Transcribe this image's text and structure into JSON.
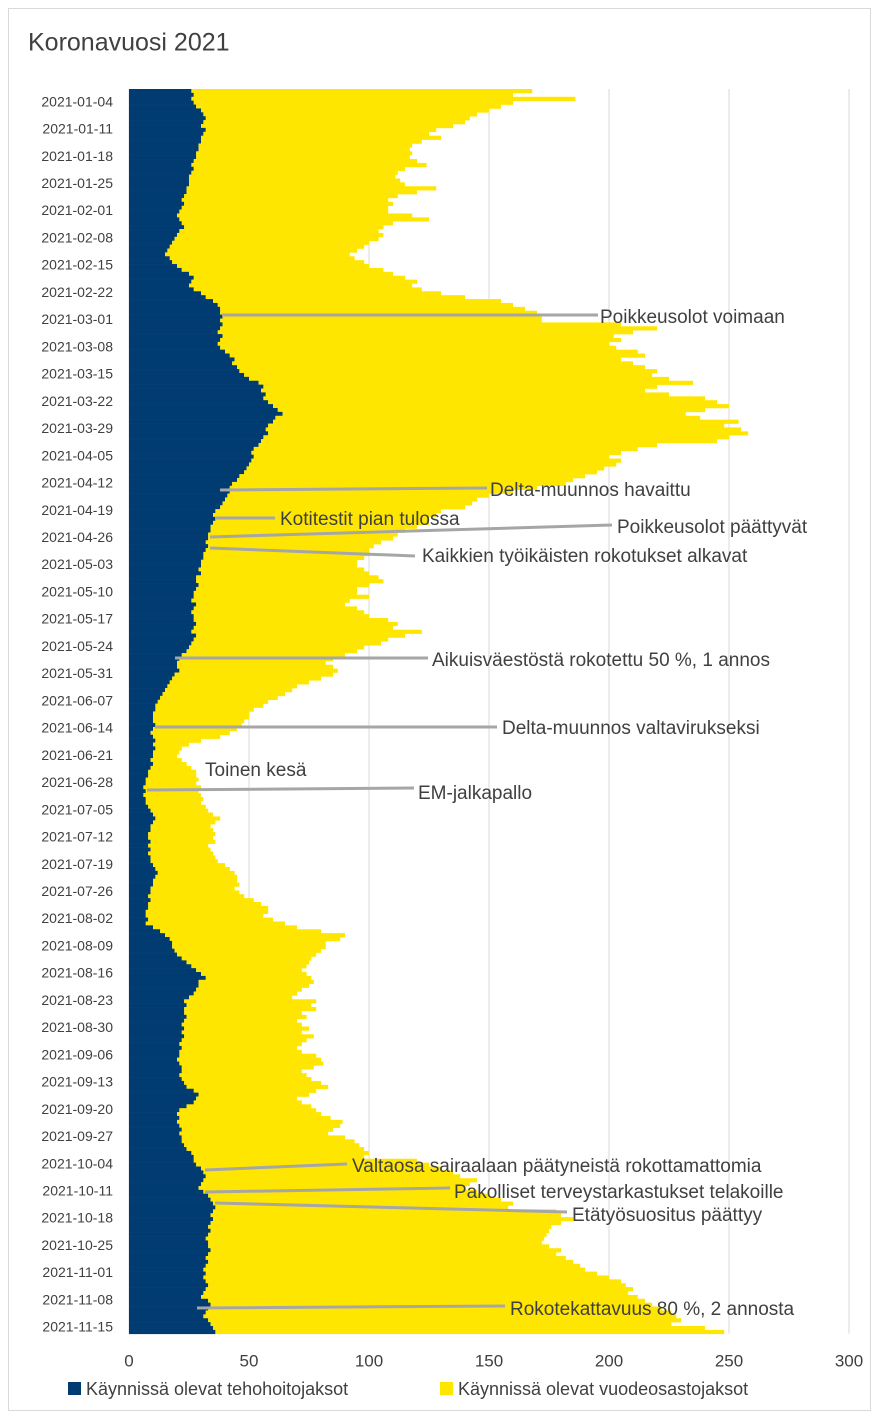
{
  "chart_data": {
    "type": "stacked-barh",
    "title": "Koronavuosi 2021",
    "categories": [
      null,
      null,
      null,
      "2021-01-04",
      null,
      null,
      null,
      null,
      null,
      null,
      "2021-01-11",
      null,
      null,
      null,
      null,
      null,
      null,
      "2021-01-18",
      null,
      null,
      null,
      null,
      null,
      null,
      "2021-01-25",
      null,
      null,
      null,
      null,
      null,
      null,
      "2021-02-01",
      null,
      null,
      null,
      null,
      null,
      null,
      "2021-02-08",
      null,
      null,
      null,
      null,
      null,
      null,
      "2021-02-15",
      null,
      null,
      null,
      null,
      null,
      null,
      "2021-02-22",
      null,
      null,
      null,
      null,
      null,
      null,
      "2021-03-01",
      null,
      null,
      null,
      null,
      null,
      null,
      "2021-03-08",
      null,
      null,
      null,
      null,
      null,
      null,
      "2021-03-15",
      null,
      null,
      null,
      null,
      null,
      null,
      "2021-03-22",
      null,
      null,
      null,
      null,
      null,
      null,
      "2021-03-29",
      null,
      null,
      null,
      null,
      null,
      null,
      "2021-04-05",
      null,
      null,
      null,
      null,
      null,
      null,
      "2021-04-12",
      null,
      null,
      null,
      null,
      null,
      null,
      "2021-04-19",
      null,
      null,
      null,
      null,
      null,
      null,
      "2021-04-26",
      null,
      null,
      null,
      null,
      null,
      null,
      "2021-05-03",
      null,
      null,
      null,
      null,
      null,
      null,
      "2021-05-10",
      null,
      null,
      null,
      null,
      null,
      null,
      "2021-05-17",
      null,
      null,
      null,
      null,
      null,
      null,
      "2021-05-24",
      null,
      null,
      null,
      null,
      null,
      null,
      "2021-05-31",
      null,
      null,
      null,
      null,
      null,
      null,
      "2021-06-07",
      null,
      null,
      null,
      null,
      null,
      null,
      "2021-06-14",
      null,
      null,
      null,
      null,
      null,
      null,
      "2021-06-21",
      null,
      null,
      null,
      null,
      null,
      null,
      "2021-06-28",
      null,
      null,
      null,
      null,
      null,
      null,
      "2021-07-05",
      null,
      null,
      null,
      null,
      null,
      null,
      "2021-07-12",
      null,
      null,
      null,
      null,
      null,
      null,
      "2021-07-19",
      null,
      null,
      null,
      null,
      null,
      null,
      "2021-07-26",
      null,
      null,
      null,
      null,
      null,
      null,
      "2021-08-02",
      null,
      null,
      null,
      null,
      null,
      null,
      "2021-08-09",
      null,
      null,
      null,
      null,
      null,
      null,
      "2021-08-16",
      null,
      null,
      null,
      null,
      null,
      null,
      "2021-08-23",
      null,
      null,
      null,
      null,
      null,
      null,
      "2021-08-30",
      null,
      null,
      null,
      null,
      null,
      null,
      "2021-09-06",
      null,
      null,
      null,
      null,
      null,
      null,
      "2021-09-13",
      null,
      null,
      null,
      null,
      null,
      null,
      "2021-09-20",
      null,
      null,
      null,
      null,
      null,
      null,
      "2021-09-27",
      null,
      null,
      null,
      null,
      null,
      null,
      "2021-10-04",
      null,
      null,
      null,
      null,
      null,
      null,
      "2021-10-11",
      null,
      null,
      null,
      null,
      null,
      null,
      "2021-10-18",
      null,
      null,
      null,
      null,
      null,
      null,
      "2021-10-25",
      null,
      null,
      null,
      null,
      null,
      null,
      "2021-11-01",
      null,
      null,
      null,
      null,
      null,
      null,
      "2021-11-08",
      null,
      null,
      null,
      null,
      null,
      null,
      "2021-11-15",
      null
    ],
    "series": [
      {
        "name": "Käynnissä olevat tehohoitojaksot",
        "color": "#003b71",
        "values": [
          26,
          27,
          26,
          27,
          28,
          30,
          31,
          32,
          31,
          30,
          32,
          31,
          30,
          30,
          29,
          29,
          28,
          28,
          27,
          26,
          27,
          26,
          25,
          25,
          25,
          24,
          24,
          23,
          22,
          23,
          22,
          21,
          20,
          21,
          22,
          23,
          21,
          20,
          19,
          18,
          17,
          16,
          15,
          17,
          18,
          20,
          22,
          25,
          27,
          26,
          25,
          27,
          30,
          32,
          35,
          37,
          38,
          38,
          39,
          38,
          39,
          38,
          37,
          39,
          38,
          37,
          38,
          40,
          42,
          44,
          43,
          45,
          46,
          48,
          50,
          54,
          56,
          55,
          57,
          56,
          58,
          60,
          62,
          64,
          61,
          60,
          58,
          57,
          58,
          56,
          55,
          54,
          52,
          51,
          52,
          51,
          50,
          49,
          48,
          46,
          45,
          43,
          42,
          42,
          41,
          40,
          39,
          38,
          36,
          35,
          36,
          35,
          34,
          34,
          33,
          33,
          32,
          33,
          32,
          31,
          31,
          30,
          30,
          29,
          30,
          28,
          28,
          29,
          28,
          27,
          27,
          26,
          28,
          27,
          26,
          27,
          27,
          28,
          27,
          26,
          28,
          27,
          26,
          25,
          24,
          22,
          21,
          20,
          20,
          21,
          19,
          18,
          17,
          16,
          15,
          14,
          13,
          12,
          11,
          11,
          10,
          10,
          10,
          11,
          10,
          9,
          10,
          11,
          10,
          11,
          10,
          10,
          9,
          10,
          9,
          8,
          8,
          7,
          7,
          6,
          7,
          6,
          7,
          7,
          8,
          9,
          10,
          11,
          10,
          9,
          9,
          8,
          8,
          9,
          8,
          9,
          8,
          9,
          9,
          10,
          11,
          12,
          11,
          10,
          10,
          9,
          9,
          8,
          9,
          8,
          8,
          7,
          7,
          8,
          7,
          10,
          13,
          15,
          17,
          18,
          18,
          19,
          20,
          22,
          24,
          26,
          28,
          30,
          32,
          29,
          29,
          28,
          27,
          25,
          23,
          24,
          23,
          23,
          24,
          23,
          22,
          23,
          22,
          23,
          22,
          21,
          22,
          21,
          21,
          20,
          21,
          22,
          22,
          21,
          22,
          23,
          24,
          27,
          29,
          28,
          27,
          24,
          21,
          20,
          21,
          20,
          21,
          22,
          21,
          22,
          22,
          23,
          24,
          26,
          27,
          27,
          28,
          30,
          31,
          32,
          31,
          30,
          29,
          31,
          33,
          34,
          35,
          36,
          35,
          34,
          35,
          34,
          33,
          34,
          33,
          32,
          33,
          33,
          34,
          33,
          32,
          33,
          32,
          31,
          32,
          31,
          32,
          33,
          32,
          31,
          30,
          33,
          34,
          33,
          32,
          31,
          33,
          34,
          35,
          36
        ]
      },
      {
        "name": "Käynnissä olevat vuodeosastojaksot",
        "color": "#ffe600",
        "values": [
          142,
          133,
          160,
          133,
          127,
          120,
          114,
          110,
          109,
          105,
          96,
          94,
          100,
          92,
          89,
          88,
          90,
          89,
          93,
          98,
          88,
          86,
          86,
          88,
          90,
          104,
          96,
          89,
          86,
          87,
          86,
          87,
          98,
          104,
          88,
          83,
          83,
          86,
          85,
          82,
          81,
          79,
          77,
          77,
          80,
          80,
          84,
          85,
          88,
          94,
          93,
          95,
          100,
          108,
          120,
          123,
          127,
          132,
          133,
          134,
          166,
          182,
          173,
          163,
          167,
          163,
          165,
          172,
          173,
          161,
          167,
          170,
          174,
          170,
          175,
          181,
          164,
          160,
          168,
          184,
          187,
          190,
          178,
          168,
          177,
          194,
          190,
          198,
          200,
          194,
          190,
          166,
          160,
          154,
          148,
          154,
          153,
          149,
          147,
          144,
          140,
          139,
          128,
          118,
          109,
          105,
          104,
          102,
          94,
          93,
          89,
          90,
          86,
          81,
          79,
          77,
          73,
          69,
          68,
          69,
          67,
          65,
          65,
          69,
          70,
          76,
          78,
          71,
          67,
          68,
          73,
          66,
          62,
          68,
          72,
          73,
          81,
          84,
          83,
          96,
          87,
          81,
          79,
          73,
          71,
          68,
          64,
          62,
          65,
          66,
          66,
          62,
          58,
          54,
          53,
          51,
          49,
          46,
          45,
          41,
          40,
          40,
          38,
          36,
          35,
          33,
          28,
          19,
          15,
          11,
          11,
          10,
          13,
          14,
          17,
          20,
          20,
          22,
          21,
          24,
          22,
          24,
          24,
          23,
          24,
          24,
          25,
          27,
          26,
          25,
          26,
          28,
          27,
          27,
          25,
          25,
          27,
          27,
          28,
          30,
          31,
          32,
          34,
          35,
          36,
          35,
          37,
          40,
          43,
          47,
          50,
          51,
          49,
          52,
          58,
          60,
          67,
          75,
          71,
          64,
          64,
          61,
          58,
          54,
          51,
          48,
          44,
          44,
          44,
          48,
          46,
          44,
          43,
          43,
          55,
          52,
          55,
          49,
          50,
          47,
          50,
          52,
          50,
          54,
          52,
          51,
          48,
          51,
          57,
          60,
          60,
          55,
          50,
          53,
          54,
          57,
          59,
          51,
          46,
          42,
          45,
          52,
          57,
          60,
          63,
          69,
          67,
          63,
          62,
          68,
          72,
          73,
          74,
          74,
          71,
          93,
          97,
          100,
          104,
          106,
          114,
          112,
          111,
          114,
          117,
          121,
          125,
          122,
          143,
          146,
          150,
          146,
          143,
          141,
          141,
          141,
          139,
          142,
          146,
          145,
          150,
          152,
          156,
          159,
          163,
          169,
          173,
          174,
          178,
          177,
          182,
          182,
          184,
          189,
          194,
          197,
          197,
          192,
          205,
          212
        ]
      }
    ],
    "xlim": [
      0,
      300
    ],
    "xticks": [
      0,
      50,
      100,
      150,
      200,
      250,
      300
    ],
    "grid": true,
    "legend": "bottom",
    "annotations": [
      "Poikkeusolot voimaan",
      "Delta-muunnos havaittu",
      "Kotitestit pian tulossa",
      "Poikkeusolot päättyvät",
      "Kaikkien työikäisten rokotukset alkavat",
      "Aikuisväestöstä rokotettu 50 %, 1 annos",
      "Delta-muunnos valtavirukseksi",
      "Toinen kesä",
      "EM-jalkapallo",
      "Valtaosa sairaalaan päätyneistä rokottamattomia",
      "Pakolliset terveystarkastukset telakoille",
      "Etätyösuositus päättyy",
      "Rokotekattavuus 80 %, 2 annosta"
    ]
  }
}
